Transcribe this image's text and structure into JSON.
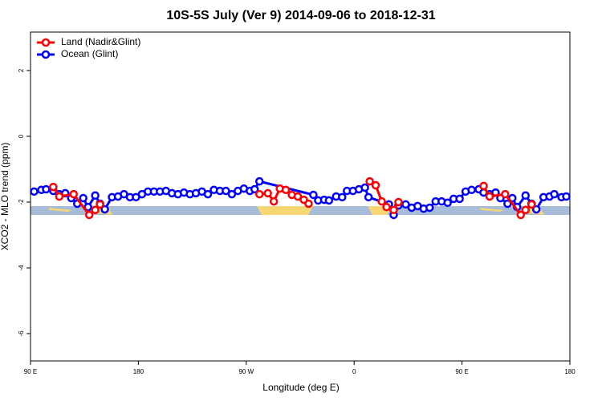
{
  "chart_data": {
    "type": "line",
    "title": "10S-5S July (Ver 9)   2014-09-06 to 2018-12-31",
    "x_label": "Longitude (deg E)",
    "y_label": "XCO2 - MLO trend (ppm)",
    "xlim": [
      90,
      540
    ],
    "ylim": [
      -6.83,
      3.17
    ],
    "xticks": [
      {
        "value": 90,
        "label": "90 E"
      },
      {
        "value": 180,
        "label": "180"
      },
      {
        "value": 270,
        "label": "90 W"
      },
      {
        "value": 360,
        "label": "0"
      },
      {
        "value": 450,
        "label": "90 E"
      },
      {
        "value": 540,
        "label": "180"
      }
    ],
    "yticks": [
      2,
      0,
      -2,
      -4,
      -6
    ],
    "legend": "top-left",
    "series": [
      {
        "name": "Land (Nadir&Glint)",
        "color": "#ff0000",
        "x": [
          109,
          114,
          126,
          139,
          144,
          148,
          null,
          281,
          288,
          293,
          298,
          303,
          308,
          313,
          318,
          322,
          null,
          373,
          378,
          383,
          387,
          393,
          397,
          null,
          468,
          473,
          486,
          499,
          503,
          508
        ],
        "values": [
          -1.54,
          -1.83,
          -1.76,
          -2.39,
          -2.24,
          -2.07,
          null,
          -1.76,
          -1.73,
          -1.98,
          -1.59,
          -1.63,
          -1.78,
          -1.83,
          -1.93,
          -2.05,
          null,
          -1.37,
          -1.49,
          -1.98,
          -2.15,
          -2.24,
          -2.0,
          null,
          -1.51,
          -1.83,
          -1.76,
          -2.39,
          -2.24,
          -2.07
        ]
      },
      {
        "name": "Ocean (Glint)",
        "color": "#0000ff",
        "x": [
          93,
          99,
          103,
          109,
          114,
          119,
          124,
          129,
          134,
          138,
          144,
          148,
          152,
          158,
          163,
          168,
          173,
          178,
          183,
          188,
          193,
          198,
          203,
          208,
          213,
          218,
          223,
          228,
          233,
          238,
          243,
          248,
          253,
          258,
          263,
          268,
          273,
          277,
          281,
          326,
          330,
          335,
          339,
          345,
          350,
          354,
          359,
          364,
          369,
          372,
          389,
          393,
          397,
          403,
          408,
          413,
          418,
          423,
          428,
          433,
          438,
          443,
          448,
          453,
          458,
          464,
          468,
          473,
          478,
          482,
          488,
          492,
          496,
          503,
          508,
          512,
          518,
          523,
          527,
          533,
          537
        ],
        "values": [
          -1.68,
          -1.63,
          -1.61,
          -1.66,
          -1.76,
          -1.73,
          -1.88,
          -2.05,
          -1.88,
          -2.15,
          -1.8,
          -2.05,
          -2.22,
          -1.85,
          -1.83,
          -1.76,
          -1.85,
          -1.85,
          -1.76,
          -1.68,
          -1.68,
          -1.68,
          -1.66,
          -1.73,
          -1.76,
          -1.71,
          -1.76,
          -1.73,
          -1.68,
          -1.76,
          -1.63,
          -1.66,
          -1.66,
          -1.76,
          -1.66,
          -1.59,
          -1.66,
          -1.61,
          -1.37,
          -1.78,
          -1.95,
          -1.93,
          -1.95,
          -1.83,
          -1.85,
          -1.66,
          -1.66,
          -1.61,
          -1.56,
          -1.85,
          -2.07,
          -2.39,
          -2.1,
          -2.07,
          -2.17,
          -2.12,
          -2.2,
          -2.17,
          -1.98,
          -1.98,
          -2.02,
          -1.9,
          -1.9,
          -1.68,
          -1.63,
          -1.61,
          -1.71,
          -1.76,
          -1.71,
          -1.88,
          -2.05,
          -1.88,
          -2.15,
          -1.8,
          -2.05,
          -2.22,
          -1.85,
          -1.83,
          -1.76,
          -1.85,
          -1.83
        ]
      }
    ]
  }
}
